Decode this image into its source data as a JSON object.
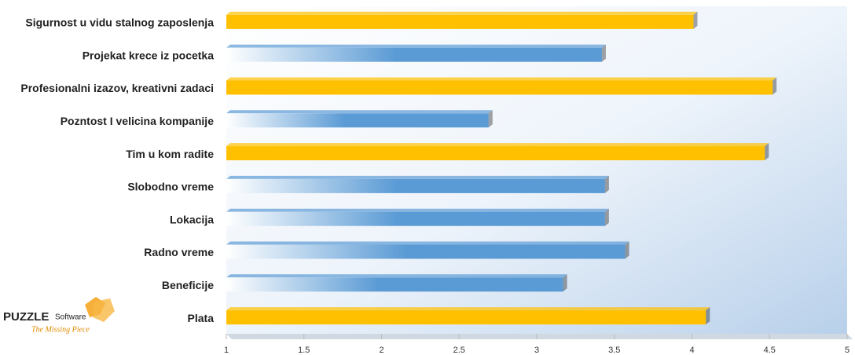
{
  "chart_data": {
    "type": "bar",
    "orientation": "horizontal",
    "categories": [
      "Sigurnost u vidu stalnog zaposlenja",
      "Projekat krece iz pocetka",
      "Profesionalni izazov, kreativni zadaci",
      "Pozntost I velicina kompanije",
      "Tim u kom radite",
      "Slobodno vreme",
      "Lokacija",
      "Radno vreme",
      "Beneficije",
      "Plata"
    ],
    "values": [
      4.01,
      3.42,
      4.52,
      2.69,
      4.47,
      3.44,
      3.44,
      3.57,
      3.17,
      4.09
    ],
    "colors": [
      "#ffc000",
      "#5b9bd5",
      "#ffc000",
      "#5b9bd5",
      "#ffc000",
      "#5b9bd5",
      "#5b9bd5",
      "#5b9bd5",
      "#5b9bd5",
      "#ffc000"
    ],
    "xlim": [
      1,
      5
    ],
    "xticks": [
      1,
      1.5,
      2,
      2.5,
      3,
      3.5,
      4,
      4.5,
      5
    ],
    "grid": false
  },
  "logo": {
    "brand": "PUZZLE",
    "product": "Software",
    "tagline": "The Missing Piece"
  }
}
